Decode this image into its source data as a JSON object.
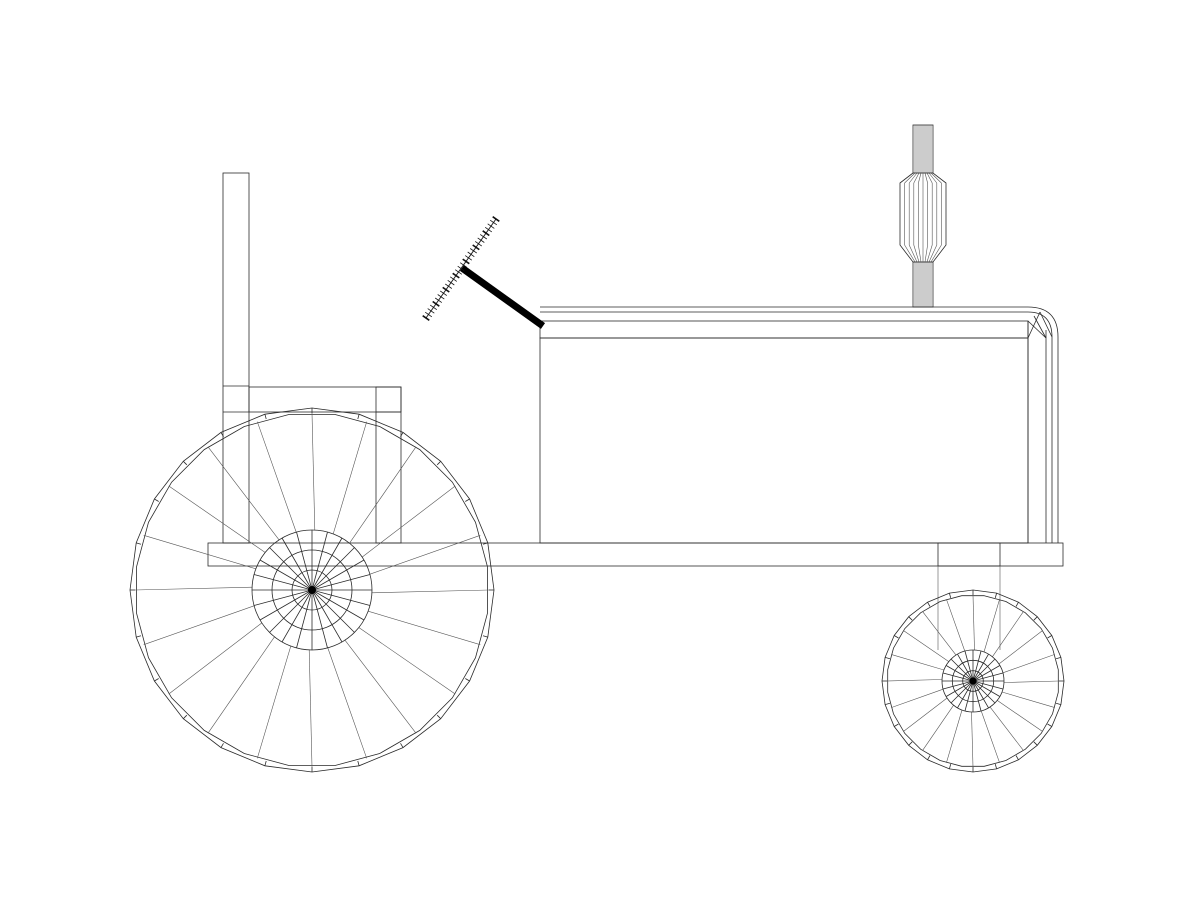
{
  "drawing": {
    "subject": "tractor",
    "style": "wireframe",
    "line_color": "#1a1a1a",
    "background": "#ffffff"
  },
  "wheels": {
    "rear": {
      "spokes": 20,
      "rim_segments": 24,
      "hub_rings": 3
    },
    "front": {
      "spokes": 20,
      "rim_segments": 24,
      "hub_rings": 3
    }
  },
  "steering_wheel": {
    "teeth": 28
  },
  "exhaust": {
    "ribs": 10
  }
}
